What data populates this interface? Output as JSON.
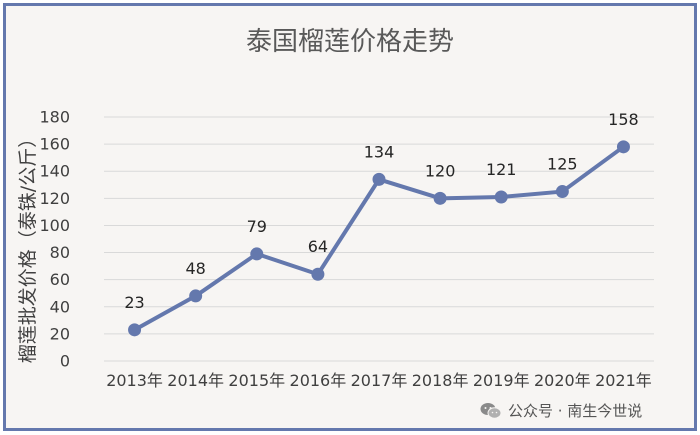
{
  "chart_data": {
    "type": "line",
    "title": "泰国榴莲价格走势",
    "ylabel": "榴莲批发价格（泰铢/公斤）",
    "xlabel": "",
    "categories": [
      "2013年",
      "2014年",
      "2015年",
      "2016年",
      "2017年",
      "2018年",
      "2019年",
      "2020年",
      "2021年"
    ],
    "series": [
      {
        "values": [
          23,
          48,
          79,
          64,
          134,
          120,
          121,
          125,
          158
        ]
      }
    ],
    "ylim": [
      0,
      180
    ],
    "yticks": [
      0,
      20,
      40,
      60,
      80,
      100,
      120,
      140,
      160,
      180
    ],
    "grid": true,
    "legend": "none",
    "data_labels": true,
    "colors": {
      "line": "#6478ad",
      "grid": "#d9d9d9",
      "background": "#f7f5f3",
      "frame": "#6478ad"
    }
  },
  "watermark": {
    "icon": "wechat-icon",
    "text": "公众号 · 南生今世说"
  }
}
